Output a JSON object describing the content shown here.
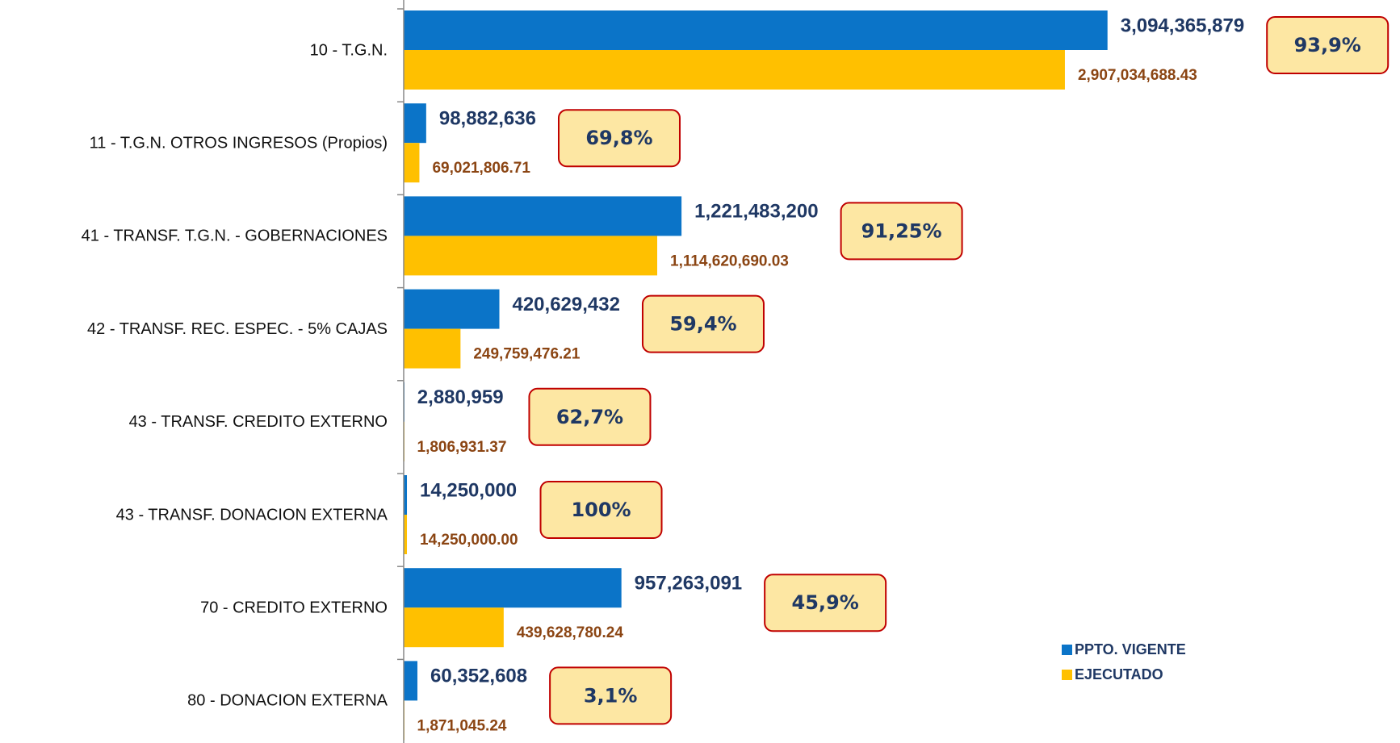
{
  "chart_data": {
    "type": "barh",
    "categories": [
      "10 - T.G.N.",
      "11 - T.G.N. OTROS INGRESOS (Propios)",
      "41 - TRANSF. T.G.N. - GOBERNACIONES",
      "42 - TRANSF. REC. ESPEC. - 5% CAJAS",
      "43 - TRANSF. CREDITO EXTERNO",
      "43 - TRANSF. DONACION EXTERNA",
      "70 - CREDITO EXTERNO",
      "80 - DONACION EXTERNA"
    ],
    "series": [
      {
        "name": "PPTO. VIGENTE",
        "color": "#0b74c8",
        "values": [
          3094365879,
          98882636,
          1221483200,
          420629432,
          2880959,
          14250000,
          957263091,
          60352608
        ],
        "value_labels": [
          "3,094,365,879",
          "98,882,636",
          "1,221,483,200",
          "420,629,432",
          "2,880,959",
          "14,250,000",
          "957,263,091",
          "60,352,608"
        ]
      },
      {
        "name": "EJECUTADO",
        "color": "#ffc000",
        "values": [
          2907034688.43,
          69021806.71,
          1114620690.03,
          249759476.21,
          1806931.37,
          14250000.0,
          439628780.24,
          1871045.24
        ],
        "value_labels": [
          "2,907,034,688.43",
          "69,021,806.71",
          "1,114,620,690.03",
          "249,759,476.21",
          "1,806,931.37",
          "14,250,000.00",
          "439,628,780.24",
          "1,871,045.24"
        ]
      }
    ],
    "annotations": [
      "93,9%",
      "69,8%",
      "91,25%",
      "59,4%",
      "62,7%",
      "100%",
      "45,9%",
      "3,1%"
    ],
    "xlim": [
      0,
      3500000000
    ],
    "legend": "lower right"
  }
}
